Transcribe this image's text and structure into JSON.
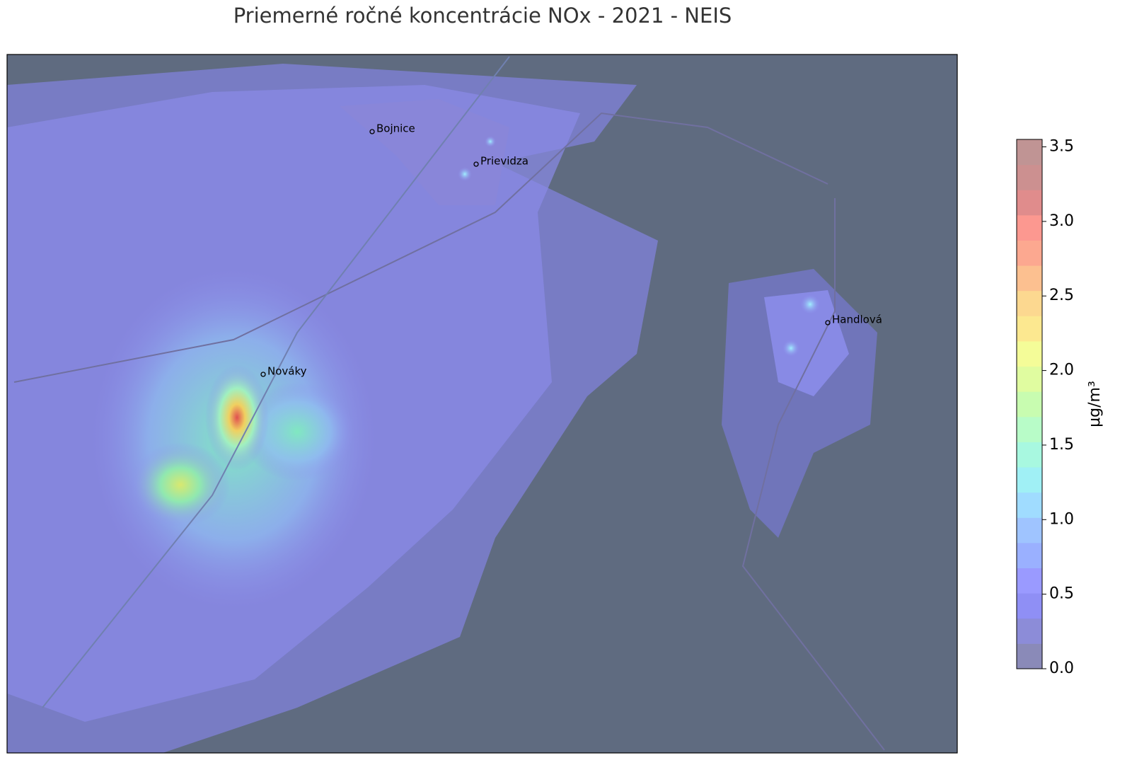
{
  "title": "Priemerné ročné koncentrácie NOx - 2021 - NEIS",
  "places": [
    "Bojnice",
    "Prievidza",
    "Nováky",
    "Handlová"
  ],
  "colorbar": {
    "label": "μg/m³",
    "lim": [
      0,
      3.55
    ],
    "ticks": [
      {
        "value": 0,
        "label": "0.0"
      },
      0.5,
      {
        "value": 1,
        "label": "1.0"
      },
      1.5,
      {
        "value": 2,
        "label": "2.0"
      },
      2.5,
      {
        "value": 3,
        "label": "3.0"
      },
      3.5
    ],
    "colors": [
      "#8a8ab8",
      "#8c8cd8",
      "#8f8ff5",
      "#9a9aff",
      "#9ab0ff",
      "#9fc4ff",
      "#a0dcff",
      "#a0f0f5",
      "#a8f8e0",
      "#b8fcc8",
      "#c8fcb0",
      "#e0fca0",
      "#f4fc98",
      "#fce890",
      "#fcd890",
      "#fcc090",
      "#fca890",
      "#fc9890",
      "#e08c8c",
      "#cc9090",
      "#c09494"
    ]
  }
}
